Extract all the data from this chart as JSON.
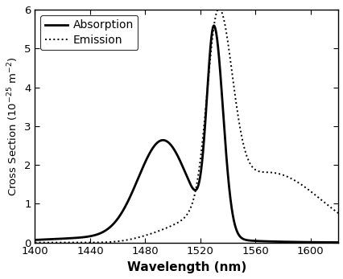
{
  "xlabel": "Wavelength (nm)",
  "ylabel_plain": "Cross Section (10$^{-25}$ m$^{-2}$)",
  "xlim": [
    1400,
    1620
  ],
  "ylim": [
    0,
    6
  ],
  "xticks": [
    1400,
    1440,
    1480,
    1520,
    1560,
    1600
  ],
  "yticks": [
    0,
    1,
    2,
    3,
    4,
    5,
    6
  ],
  "legend_absorption": "Absorption",
  "legend_emission": "Emission",
  "absorption_color": "#000000",
  "emission_color": "#000000",
  "background_color": "#ffffff",
  "linewidth_absorption": 2.0,
  "linewidth_emission": 1.4,
  "label_fontsize": 11
}
